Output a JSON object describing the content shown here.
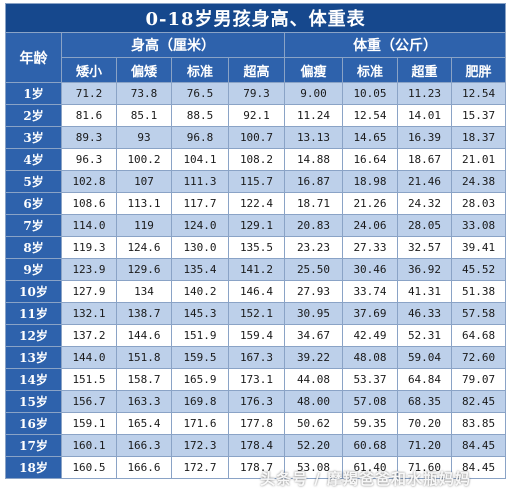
{
  "title": "0-18岁男孩身高、体重表",
  "headers": {
    "age": "年龄",
    "height_group": "身高（厘米）",
    "weight_group": "体重（公斤）",
    "height_cols": [
      "矮小",
      "偏矮",
      "标准",
      "超高"
    ],
    "weight_cols": [
      "偏瘦",
      "标准",
      "超重",
      "肥胖"
    ]
  },
  "rows": [
    {
      "age": "1岁",
      "h": [
        "71.2",
        "73.8",
        "76.5",
        "79.3"
      ],
      "w": [
        "9.00",
        "10.05",
        "11.23",
        "12.54"
      ]
    },
    {
      "age": "2岁",
      "h": [
        "81.6",
        "85.1",
        "88.5",
        "92.1"
      ],
      "w": [
        "11.24",
        "12.54",
        "14.01",
        "15.37"
      ]
    },
    {
      "age": "3岁",
      "h": [
        "89.3",
        "93",
        "96.8",
        "100.7"
      ],
      "w": [
        "13.13",
        "14.65",
        "16.39",
        "18.37"
      ]
    },
    {
      "age": "4岁",
      "h": [
        "96.3",
        "100.2",
        "104.1",
        "108.2"
      ],
      "w": [
        "14.88",
        "16.64",
        "18.67",
        "21.01"
      ]
    },
    {
      "age": "5岁",
      "h": [
        "102.8",
        "107",
        "111.3",
        "115.7"
      ],
      "w": [
        "16.87",
        "18.98",
        "21.46",
        "24.38"
      ]
    },
    {
      "age": "6岁",
      "h": [
        "108.6",
        "113.1",
        "117.7",
        "122.4"
      ],
      "w": [
        "18.71",
        "21.26",
        "24.32",
        "28.03"
      ]
    },
    {
      "age": "7岁",
      "h": [
        "114.0",
        "119",
        "124.0",
        "129.1"
      ],
      "w": [
        "20.83",
        "24.06",
        "28.05",
        "33.08"
      ]
    },
    {
      "age": "8岁",
      "h": [
        "119.3",
        "124.6",
        "130.0",
        "135.5"
      ],
      "w": [
        "23.23",
        "27.33",
        "32.57",
        "39.41"
      ]
    },
    {
      "age": "9岁",
      "h": [
        "123.9",
        "129.6",
        "135.4",
        "141.2"
      ],
      "w": [
        "25.50",
        "30.46",
        "36.92",
        "45.52"
      ]
    },
    {
      "age": "10岁",
      "h": [
        "127.9",
        "134",
        "140.2",
        "146.4"
      ],
      "w": [
        "27.93",
        "33.74",
        "41.31",
        "51.38"
      ]
    },
    {
      "age": "11岁",
      "h": [
        "132.1",
        "138.7",
        "145.3",
        "152.1"
      ],
      "w": [
        "30.95",
        "37.69",
        "46.33",
        "57.58"
      ]
    },
    {
      "age": "12岁",
      "h": [
        "137.2",
        "144.6",
        "151.9",
        "159.4"
      ],
      "w": [
        "34.67",
        "42.49",
        "52.31",
        "64.68"
      ]
    },
    {
      "age": "13岁",
      "h": [
        "144.0",
        "151.8",
        "159.5",
        "167.3"
      ],
      "w": [
        "39.22",
        "48.08",
        "59.04",
        "72.60"
      ]
    },
    {
      "age": "14岁",
      "h": [
        "151.5",
        "158.7",
        "165.9",
        "173.1"
      ],
      "w": [
        "44.08",
        "53.37",
        "64.84",
        "79.07"
      ]
    },
    {
      "age": "15岁",
      "h": [
        "156.7",
        "163.3",
        "169.8",
        "176.3"
      ],
      "w": [
        "48.00",
        "57.08",
        "68.35",
        "82.45"
      ]
    },
    {
      "age": "16岁",
      "h": [
        "159.1",
        "165.4",
        "171.6",
        "177.8"
      ],
      "w": [
        "50.62",
        "59.35",
        "70.20",
        "83.85"
      ]
    },
    {
      "age": "17岁",
      "h": [
        "160.1",
        "166.3",
        "172.3",
        "178.4"
      ],
      "w": [
        "52.20",
        "60.68",
        "71.20",
        "84.45"
      ]
    },
    {
      "age": "18岁",
      "h": [
        "160.5",
        "166.6",
        "172.7",
        "178.7"
      ],
      "w": [
        "53.08",
        "61.40",
        "71.60",
        "84.45"
      ]
    }
  ],
  "watermark": "头条号 / 摩羯爸爸和水瓶妈妈"
}
